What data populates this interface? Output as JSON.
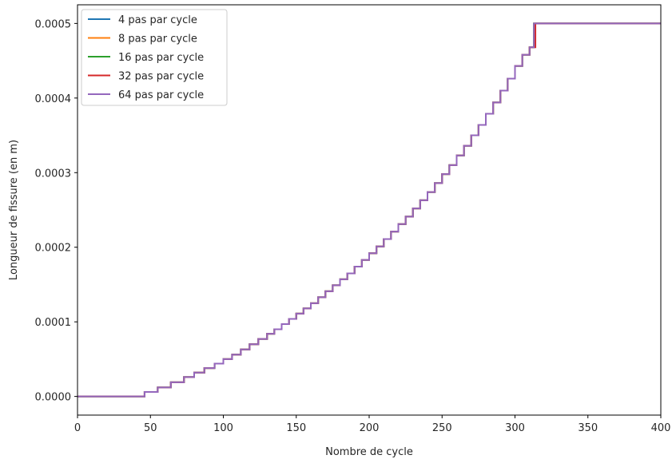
{
  "chart_data": {
    "type": "line",
    "xlabel": "Nombre de cycle",
    "ylabel": "Longueur de fissure (en m)",
    "xlim": [
      0,
      400
    ],
    "ylim": [
      -2.5e-05,
      0.000525
    ],
    "xticks": [
      0,
      50,
      100,
      150,
      200,
      250,
      300,
      350,
      400
    ],
    "xtick_labels": [
      "0",
      "50",
      "100",
      "150",
      "200",
      "250",
      "300",
      "350",
      "400"
    ],
    "yticks": [
      0,
      0.0001,
      0.0002,
      0.0003,
      0.0004,
      0.0005
    ],
    "ytick_labels": [
      "0.0000",
      "0.0001",
      "0.0002",
      "0.0003",
      "0.0004",
      "0.0005"
    ],
    "grid": false,
    "legend_position": "top-left",
    "series": [
      {
        "name": "4 pas par cycle",
        "color": "#1f77b4",
        "x_steps": [
          0,
          46,
          55,
          64,
          73,
          80,
          87,
          94,
          100,
          106,
          112,
          118,
          124,
          130,
          135,
          140,
          145,
          150,
          155,
          160,
          165,
          170,
          175,
          180,
          185,
          190,
          195,
          200,
          205,
          210,
          215,
          220,
          225,
          230,
          235,
          240,
          245,
          250,
          255,
          260,
          265,
          270,
          275,
          280,
          285,
          290,
          295,
          300,
          305,
          310,
          313
        ],
        "y_levels": [
          0,
          6e-06,
          1.2e-05,
          1.9e-05,
          2.6e-05,
          3.2e-05,
          3.8e-05,
          4.4e-05,
          5e-05,
          5.6e-05,
          6.3e-05,
          7e-05,
          7.7e-05,
          8.4e-05,
          9e-05,
          9.7e-05,
          0.000104,
          0.000111,
          0.000118,
          0.000125,
          0.000133,
          0.000141,
          0.000149,
          0.000157,
          0.000165,
          0.000174,
          0.000183,
          0.000192,
          0.000201,
          0.000211,
          0.000221,
          0.000231,
          0.000241,
          0.000252,
          0.000263,
          0.000274,
          0.000286,
          0.000298,
          0.00031,
          0.000323,
          0.000336,
          0.00035,
          0.000364,
          0.000379,
          0.000394,
          0.00041,
          0.000426,
          0.000443,
          0.000458,
          0.000468,
          0.0005
        ],
        "x_end": 400
      },
      {
        "name": "8 pas par cycle",
        "color": "#ff7f0e",
        "x_steps": [
          0,
          46,
          55,
          64,
          73,
          80,
          87,
          94,
          100,
          106,
          112,
          118,
          124,
          130,
          135,
          140,
          145,
          150,
          155,
          160,
          165,
          170,
          175,
          180,
          185,
          190,
          195,
          200,
          205,
          210,
          215,
          220,
          225,
          230,
          235,
          240,
          245,
          250,
          255,
          260,
          265,
          270,
          275,
          280,
          285,
          290,
          295,
          300,
          305,
          310,
          313
        ],
        "y_levels": [
          0,
          6e-06,
          1.2e-05,
          1.9e-05,
          2.6e-05,
          3.2e-05,
          3.8e-05,
          4.4e-05,
          5e-05,
          5.6e-05,
          6.3e-05,
          7e-05,
          7.7e-05,
          8.4e-05,
          9e-05,
          9.7e-05,
          0.000104,
          0.000111,
          0.000118,
          0.000125,
          0.000133,
          0.000141,
          0.000149,
          0.000157,
          0.000165,
          0.000174,
          0.000183,
          0.000192,
          0.000201,
          0.000211,
          0.000221,
          0.000231,
          0.000241,
          0.000252,
          0.000263,
          0.000274,
          0.000286,
          0.000298,
          0.00031,
          0.000323,
          0.000336,
          0.00035,
          0.000364,
          0.000379,
          0.000394,
          0.00041,
          0.000426,
          0.000443,
          0.000458,
          0.000468,
          0.0005
        ],
        "x_end": 400
      },
      {
        "name": "16 pas par cycle",
        "color": "#2ca02c",
        "x_steps": [
          0,
          46,
          55,
          64,
          73,
          80,
          87,
          94,
          100,
          106,
          112,
          118,
          124,
          130,
          135,
          140,
          145,
          150,
          155,
          160,
          165,
          170,
          175,
          180,
          185,
          190,
          195,
          200,
          205,
          210,
          215,
          220,
          225,
          230,
          235,
          240,
          245,
          250,
          255,
          260,
          265,
          270,
          275,
          280,
          285,
          290,
          295,
          300,
          305,
          310,
          313
        ],
        "y_levels": [
          0,
          6e-06,
          1.2e-05,
          1.9e-05,
          2.6e-05,
          3.2e-05,
          3.8e-05,
          4.4e-05,
          5e-05,
          5.6e-05,
          6.3e-05,
          7e-05,
          7.7e-05,
          8.4e-05,
          9e-05,
          9.7e-05,
          0.000104,
          0.000111,
          0.000118,
          0.000125,
          0.000133,
          0.000141,
          0.000149,
          0.000157,
          0.000165,
          0.000174,
          0.000183,
          0.000192,
          0.000201,
          0.000211,
          0.000221,
          0.000231,
          0.000241,
          0.000252,
          0.000263,
          0.000274,
          0.000286,
          0.000298,
          0.00031,
          0.000323,
          0.000336,
          0.00035,
          0.000364,
          0.000379,
          0.000394,
          0.00041,
          0.000426,
          0.000443,
          0.000458,
          0.000468,
          0.0005
        ],
        "x_end": 400
      },
      {
        "name": "32 pas par cycle",
        "color": "#d62728",
        "x_steps": [
          0,
          46,
          55,
          64,
          73,
          80,
          87,
          94,
          100,
          106,
          112,
          118,
          124,
          130,
          135,
          140,
          145,
          150,
          155,
          160,
          165,
          170,
          175,
          180,
          185,
          190,
          195,
          200,
          205,
          210,
          215,
          220,
          225,
          230,
          235,
          240,
          245,
          250,
          255,
          260,
          265,
          270,
          275,
          280,
          285,
          290,
          295,
          300,
          305,
          310,
          314
        ],
        "y_levels": [
          0,
          6e-06,
          1.2e-05,
          1.9e-05,
          2.6e-05,
          3.2e-05,
          3.8e-05,
          4.4e-05,
          5e-05,
          5.6e-05,
          6.3e-05,
          7e-05,
          7.7e-05,
          8.4e-05,
          9e-05,
          9.7e-05,
          0.000104,
          0.000111,
          0.000118,
          0.000125,
          0.000133,
          0.000141,
          0.000149,
          0.000157,
          0.000165,
          0.000174,
          0.000183,
          0.000192,
          0.000201,
          0.000211,
          0.000221,
          0.000231,
          0.000241,
          0.000252,
          0.000263,
          0.000274,
          0.000286,
          0.000298,
          0.00031,
          0.000323,
          0.000336,
          0.00035,
          0.000364,
          0.000379,
          0.000394,
          0.00041,
          0.000426,
          0.000443,
          0.000458,
          0.000468,
          0.0005
        ],
        "x_end": 400
      },
      {
        "name": "64 pas par cycle",
        "color": "#9467bd",
        "x_steps": [
          0,
          46,
          55,
          64,
          73,
          80,
          87,
          94,
          100,
          106,
          112,
          118,
          124,
          130,
          135,
          140,
          145,
          150,
          155,
          160,
          165,
          170,
          175,
          180,
          185,
          190,
          195,
          200,
          205,
          210,
          215,
          220,
          225,
          230,
          235,
          240,
          245,
          250,
          255,
          260,
          265,
          270,
          275,
          280,
          285,
          290,
          295,
          300,
          305,
          310,
          313
        ],
        "y_levels": [
          0,
          6e-06,
          1.2e-05,
          1.9e-05,
          2.6e-05,
          3.2e-05,
          3.8e-05,
          4.4e-05,
          5e-05,
          5.6e-05,
          6.3e-05,
          7e-05,
          7.7e-05,
          8.4e-05,
          9e-05,
          9.7e-05,
          0.000104,
          0.000111,
          0.000118,
          0.000125,
          0.000133,
          0.000141,
          0.000149,
          0.000157,
          0.000165,
          0.000174,
          0.000183,
          0.000192,
          0.000201,
          0.000211,
          0.000221,
          0.000231,
          0.000241,
          0.000252,
          0.000263,
          0.000274,
          0.000286,
          0.000298,
          0.00031,
          0.000323,
          0.000336,
          0.00035,
          0.000364,
          0.000379,
          0.000394,
          0.00041,
          0.000426,
          0.000443,
          0.000458,
          0.000468,
          0.0005
        ],
        "x_end": 400
      }
    ]
  }
}
